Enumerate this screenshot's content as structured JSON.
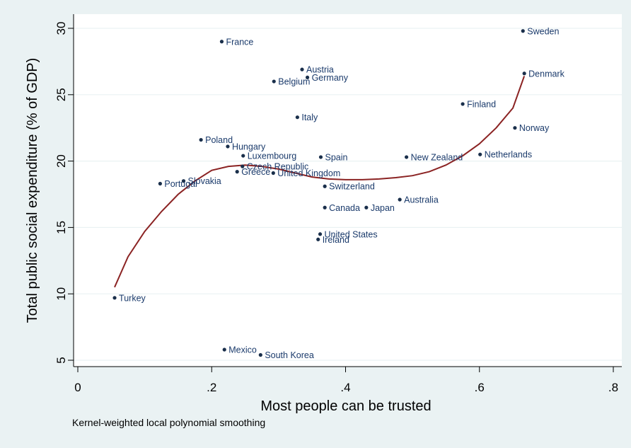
{
  "chart_data": {
    "type": "scatter",
    "xlabel": "Most people can be trusted",
    "ylabel": "Total public social expenditure (% of GDP)",
    "note": "Kernel-weighted local polynomial smoothing",
    "xlim": [
      0,
      0.8
    ],
    "ylim": [
      5,
      30
    ],
    "xticks": [
      {
        "value": 0,
        "label": "0"
      },
      {
        "value": 0.2,
        "label": ".2"
      },
      {
        "value": 0.4,
        "label": ".4"
      },
      {
        "value": 0.6,
        "label": ".6"
      },
      {
        "value": 0.8,
        "label": ".8"
      }
    ],
    "yticks": [
      {
        "value": 5,
        "label": "5"
      },
      {
        "value": 10,
        "label": "10"
      },
      {
        "value": 15,
        "label": "15"
      },
      {
        "value": 20,
        "label": "20"
      },
      {
        "value": 25,
        "label": "25"
      },
      {
        "value": 30,
        "label": "30"
      }
    ],
    "grid": true,
    "colors": {
      "points": "#1a2f4b",
      "labels": "#1a3a6b",
      "smooth": "#8b2323",
      "grid": "#eaf2f3",
      "plot_bg": "#ffffff",
      "background": "#eaf2f3"
    },
    "points": [
      {
        "label": "Sweden",
        "x": 0.665,
        "y": 29.8
      },
      {
        "label": "France",
        "x": 0.215,
        "y": 29.0
      },
      {
        "label": "Austria",
        "x": 0.335,
        "y": 26.9
      },
      {
        "label": "Germany",
        "x": 0.343,
        "y": 26.3
      },
      {
        "label": "Denmark",
        "x": 0.667,
        "y": 26.6
      },
      {
        "label": "Belgium",
        "x": 0.293,
        "y": 26.0
      },
      {
        "label": "Finland",
        "x": 0.575,
        "y": 24.3
      },
      {
        "label": "Italy",
        "x": 0.328,
        "y": 23.3
      },
      {
        "label": "Norway",
        "x": 0.653,
        "y": 22.5
      },
      {
        "label": "Poland",
        "x": 0.184,
        "y": 21.6
      },
      {
        "label": "Hungary",
        "x": 0.224,
        "y": 21.1
      },
      {
        "label": "Luxembourg",
        "x": 0.247,
        "y": 20.4
      },
      {
        "label": "Spain",
        "x": 0.363,
        "y": 20.3
      },
      {
        "label": "New Zealand",
        "x": 0.491,
        "y": 20.3
      },
      {
        "label": "Netherlands",
        "x": 0.601,
        "y": 20.5
      },
      {
        "label": "Czech Republic",
        "x": 0.246,
        "y": 19.6
      },
      {
        "label": "Greece",
        "x": 0.238,
        "y": 19.2
      },
      {
        "label": "United Kingdom",
        "x": 0.292,
        "y": 19.1
      },
      {
        "label": "Slovakia",
        "x": 0.158,
        "y": 18.5
      },
      {
        "label": "Portugal",
        "x": 0.123,
        "y": 18.3
      },
      {
        "label": "Switzerland",
        "x": 0.369,
        "y": 18.1
      },
      {
        "label": "Australia",
        "x": 0.481,
        "y": 17.1
      },
      {
        "label": "Canada",
        "x": 0.369,
        "y": 16.5
      },
      {
        "label": "Japan",
        "x": 0.431,
        "y": 16.5
      },
      {
        "label": "United States",
        "x": 0.362,
        "y": 14.5
      },
      {
        "label": "Ireland",
        "x": 0.359,
        "y": 14.1
      },
      {
        "label": "Turkey",
        "x": 0.055,
        "y": 9.7
      },
      {
        "label": "Mexico",
        "x": 0.219,
        "y": 5.8
      },
      {
        "label": "South Korea",
        "x": 0.273,
        "y": 5.4
      }
    ],
    "smooth_line": {
      "x": [
        0.055,
        0.075,
        0.1,
        0.125,
        0.15,
        0.175,
        0.2,
        0.225,
        0.25,
        0.275,
        0.3,
        0.325,
        0.35,
        0.375,
        0.4,
        0.425,
        0.45,
        0.475,
        0.5,
        0.525,
        0.55,
        0.575,
        0.6,
        0.625,
        0.65,
        0.667
      ],
      "y": [
        10.5,
        12.8,
        14.7,
        16.2,
        17.5,
        18.5,
        19.3,
        19.6,
        19.7,
        19.6,
        19.4,
        19.1,
        18.8,
        18.65,
        18.6,
        18.6,
        18.65,
        18.75,
        18.9,
        19.2,
        19.7,
        20.4,
        21.3,
        22.5,
        24.0,
        26.4
      ]
    }
  }
}
